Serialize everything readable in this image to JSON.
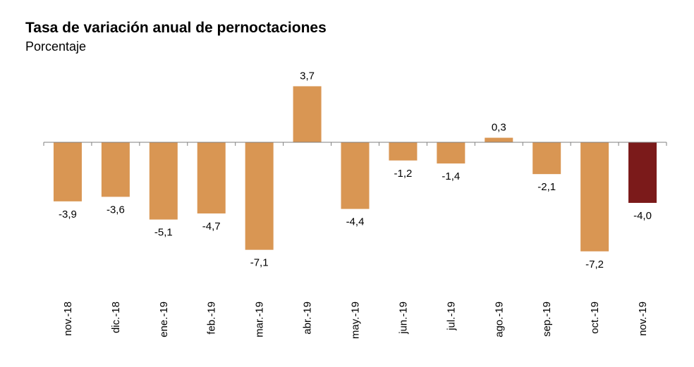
{
  "chart_data": {
    "type": "bar",
    "title": "Tasa de variación anual de pernoctaciones",
    "subtitle": "Porcentaje",
    "categories": [
      "nov.-18",
      "dic.-18",
      "ene.-19",
      "feb.-19",
      "mar.-19",
      "abr.-19",
      "may.-19",
      "jun.-19",
      "jul.-19",
      "ago.-19",
      "sep.-19",
      "oct.-19",
      "nov.-19"
    ],
    "values": [
      -3.9,
      -3.6,
      -5.1,
      -4.7,
      -7.1,
      3.7,
      -4.4,
      -1.2,
      -1.4,
      0.3,
      -2.1,
      -7.2,
      -4.0
    ],
    "value_labels": [
      "-3,9",
      "-3,6",
      "-5,1",
      "-4,7",
      "-7,1",
      "3,7",
      "-4,4",
      "-1,2",
      "-1,4",
      "0,3",
      "-2,1",
      "-7,2",
      "-4,0"
    ],
    "colors": {
      "default": "#D99653",
      "highlight": "#7B1A1A"
    },
    "highlight_index": 12,
    "grid": false,
    "legend": "none"
  }
}
